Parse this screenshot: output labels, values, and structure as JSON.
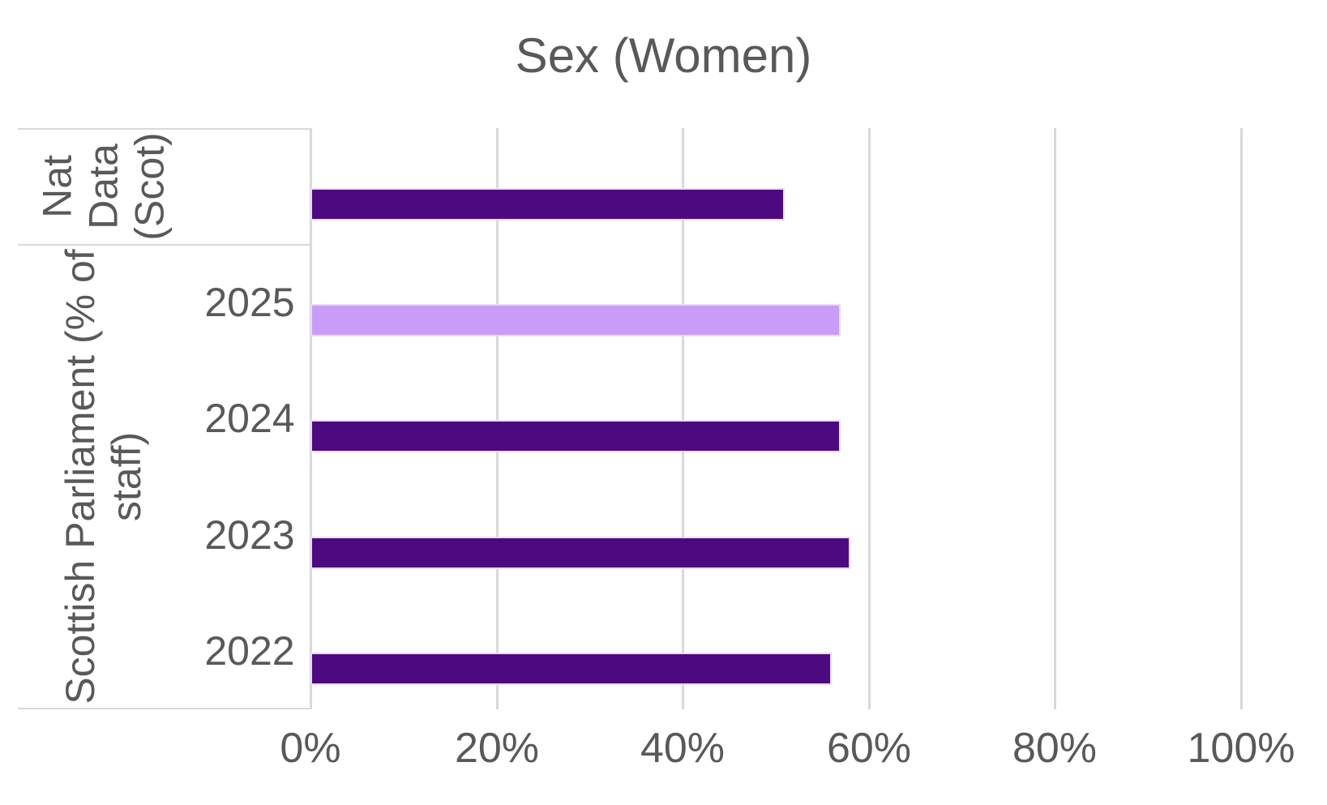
{
  "title": "Sex (Women)",
  "colors": {
    "bar_default": "#4d0a80",
    "bar_highlight": "#c99cf7",
    "bar_border": "#e9dbf5",
    "gridline": "#d9d9d9",
    "text": "#595959"
  },
  "chart_data": {
    "type": "bar",
    "orientation": "horizontal",
    "title": "Sex (Women)",
    "categories": [
      "Nat Data (Scot)",
      "2025",
      "2024",
      "2023",
      "2022"
    ],
    "values": [
      51,
      57,
      57,
      58,
      56
    ],
    "unit": "%",
    "xlabel": "",
    "ylabel": "",
    "xlim": [
      0,
      100
    ],
    "x_tick_step": 20,
    "x_ticks": [
      "0%",
      "20%",
      "40%",
      "60%",
      "80%",
      "100%"
    ],
    "grid": "vertical-only",
    "legend": "none",
    "highlighted_category": "2025",
    "series_color_default": "#4d0a80",
    "series_color_highlight": "#c99cf7",
    "group_axis": [
      {
        "label": "Nat Data (Scot)",
        "categories": [
          "Nat Data (Scot)"
        ]
      },
      {
        "label": "Scottish Parliament (% of staff)",
        "categories": [
          "2025",
          "2024",
          "2023",
          "2022"
        ]
      }
    ]
  },
  "groups": [
    {
      "id": "nat-data-scot",
      "label": "Nat Data (Scot)",
      "label_lines": [
        "Nat",
        "Data",
        "(Scot)"
      ],
      "rows": [
        {
          "id": "nat-data-scot",
          "year_label": "",
          "value": 51,
          "highlight": false
        }
      ]
    },
    {
      "id": "scottish-parliament",
      "label": "Scottish Parliament (% of staff)",
      "label_lines": [
        "Scottish Parliament (% of",
        "staff)"
      ],
      "rows": [
        {
          "id": "2025",
          "year_label": "2025",
          "value": 57,
          "highlight": true
        },
        {
          "id": "2024",
          "year_label": "2024",
          "value": 57,
          "highlight": false
        },
        {
          "id": "2023",
          "year_label": "2023",
          "value": 58,
          "highlight": false
        },
        {
          "id": "2022",
          "year_label": "2022",
          "value": 56,
          "highlight": false
        }
      ]
    }
  ]
}
